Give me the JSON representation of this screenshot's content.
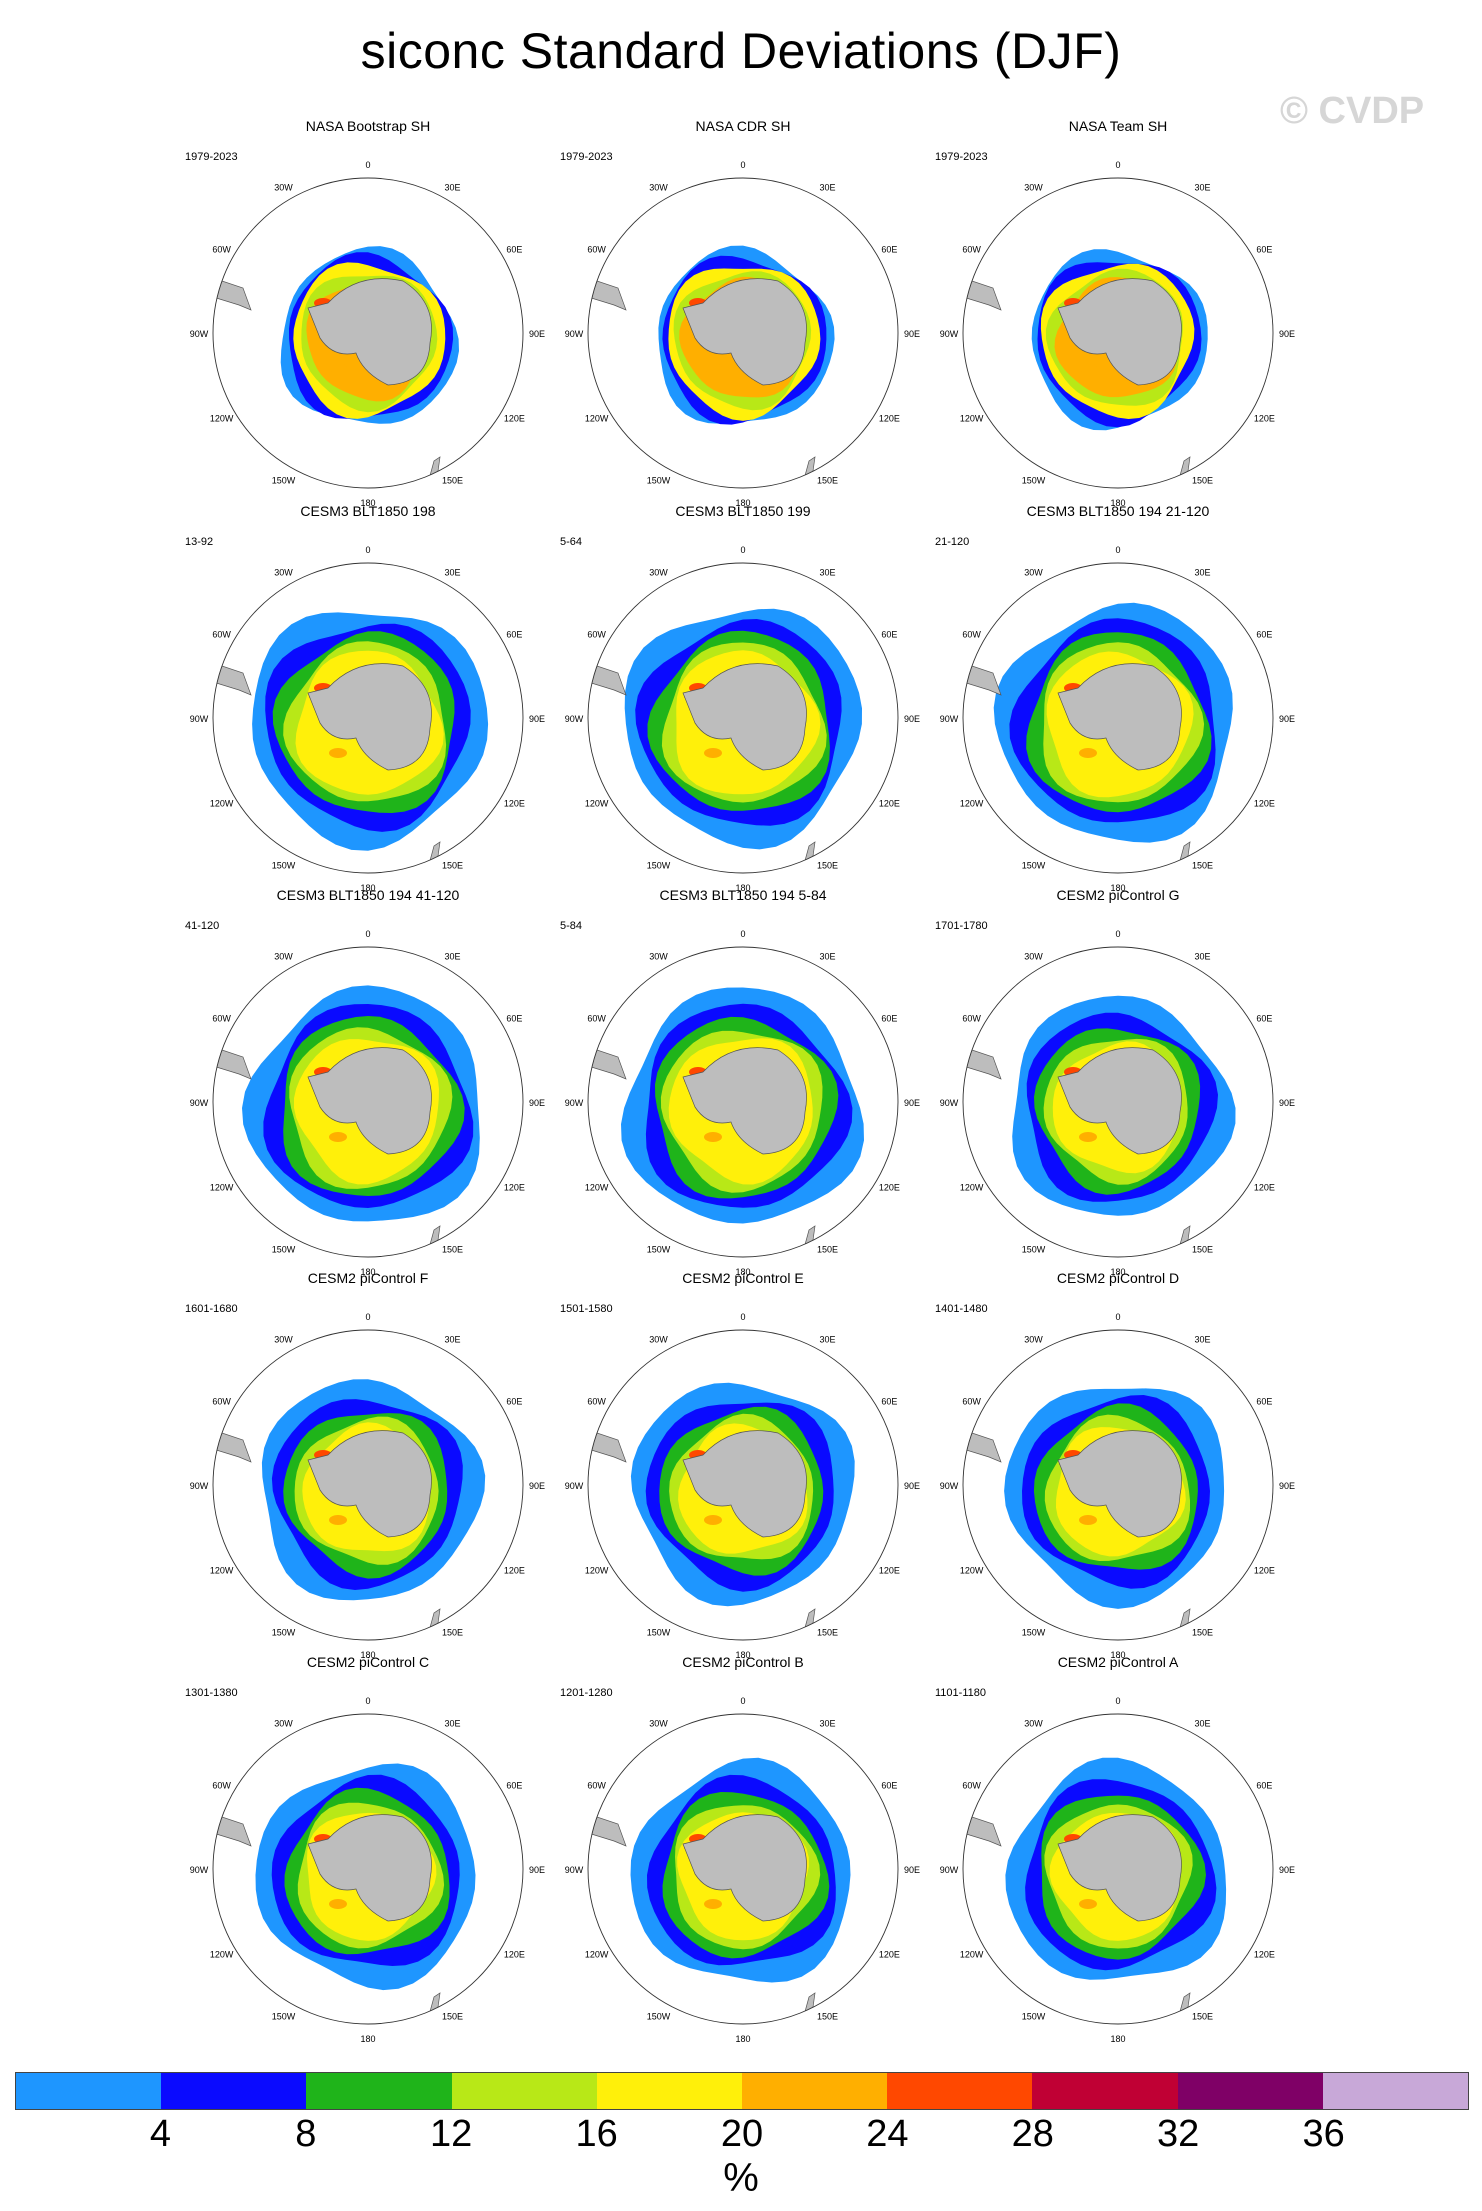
{
  "title": "siconc Standard Deviations (DJF)",
  "watermark": "© CVDP",
  "lon_labels": [
    "0",
    "30E",
    "60E",
    "90E",
    "120E",
    "150E",
    "180",
    "150W",
    "120W",
    "90W",
    "60W",
    "30W"
  ],
  "colorbar": {
    "unit": "%",
    "ticks": [
      "4",
      "8",
      "12",
      "16",
      "20",
      "24",
      "28",
      "32",
      "36"
    ],
    "colors": [
      "#1e96ff",
      "#0a0aff",
      "#1fb41a",
      "#b8e817",
      "#fff00a",
      "#ffaf00",
      "#ff4800",
      "#c00034",
      "#7f0066",
      "#c8a8d8"
    ]
  },
  "panels": [
    {
      "title": "NASA Bootstrap SH",
      "years": "1979-2023",
      "kind": "obs"
    },
    {
      "title": "NASA CDR SH",
      "years": "1979-2023",
      "kind": "obs"
    },
    {
      "title": "NASA Team SH",
      "years": "1979-2023",
      "kind": "obs"
    },
    {
      "title": "CESM3 BLT1850 198",
      "years": "13-92",
      "kind": "cesm3"
    },
    {
      "title": "CESM3 BLT1850 199",
      "years": "5-64",
      "kind": "cesm3"
    },
    {
      "title": "CESM3 BLT1850 194 21-120",
      "years": "21-120",
      "kind": "cesm3"
    },
    {
      "title": "CESM3 BLT1850 194 41-120",
      "years": "41-120",
      "kind": "cesm3"
    },
    {
      "title": "CESM3 BLT1850 194 5-84",
      "years": "5-84",
      "kind": "cesm3"
    },
    {
      "title": "CESM2 piControl G",
      "years": "1701-1780",
      "kind": "cesm2"
    },
    {
      "title": "CESM2 piControl F",
      "years": "1601-1680",
      "kind": "cesm2"
    },
    {
      "title": "CESM2 piControl E",
      "years": "1501-1580",
      "kind": "cesm2"
    },
    {
      "title": "CESM2 piControl D",
      "years": "1401-1480",
      "kind": "cesm2"
    },
    {
      "title": "CESM2 piControl C",
      "years": "1301-1380",
      "kind": "cesm2"
    },
    {
      "title": "CESM2 piControl B",
      "years": "1201-1280",
      "kind": "cesm2"
    },
    {
      "title": "CESM2 piControl A",
      "years": "1101-1180",
      "kind": "cesm2"
    }
  ]
}
